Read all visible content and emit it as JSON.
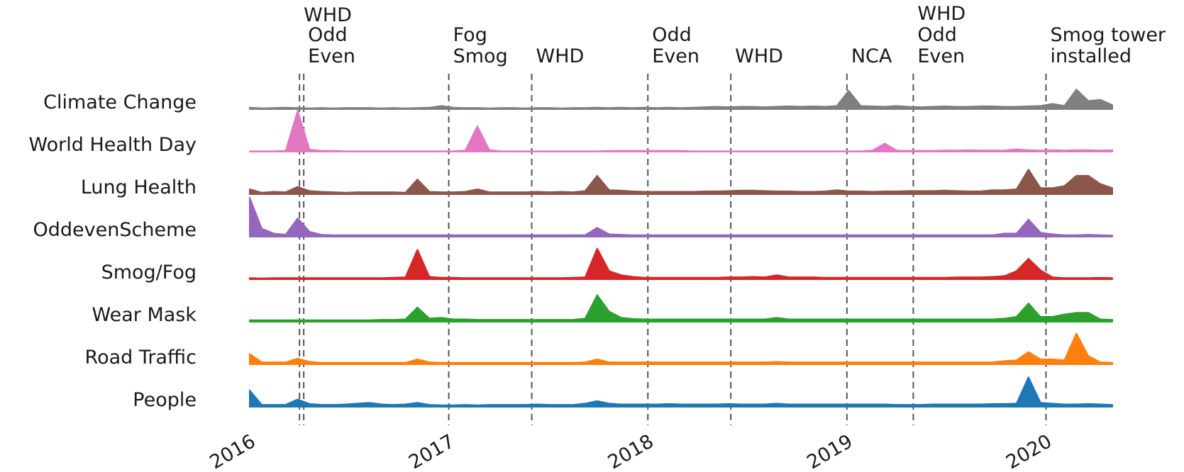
{
  "chart_data": {
    "type": "area",
    "x_start": "2016-01",
    "x_end": "2020-05",
    "x_ticks": [
      "2016",
      "2017",
      "2018",
      "2019",
      "2020"
    ],
    "x_tick_dates": [
      "2016-01",
      "2017-01",
      "2018-01",
      "2019-01",
      "2020-01"
    ],
    "grid": false,
    "legend": "none (rows labeled on the left)",
    "events": [
      {
        "date": "2016-04",
        "lines": [
          "WHD"
        ]
      },
      {
        "date": "2016-04",
        "lines": [
          "Odd",
          "Even"
        ]
      },
      {
        "date": "2017-01",
        "lines": [
          "Fog",
          "Smog"
        ]
      },
      {
        "date": "2017-06",
        "lines": [
          "WHD"
        ]
      },
      {
        "date": "2018-01",
        "lines": [
          "Odd",
          "Even"
        ]
      },
      {
        "date": "2018-06",
        "lines": [
          "WHD"
        ]
      },
      {
        "date": "2019-01",
        "lines": [
          "NCA"
        ]
      },
      {
        "date": "2019-05",
        "lines": [
          "WHD",
          "Odd",
          "Even"
        ]
      },
      {
        "date": "2020-01",
        "lines": [
          "Smog tower",
          "installed"
        ]
      }
    ],
    "series": [
      {
        "name": "Climate Change",
        "color": "#7f7f7f",
        "values": [
          0.04,
          0.02,
          0.03,
          0.04,
          0.03,
          0.02,
          0.03,
          0.02,
          0.03,
          0.03,
          0.03,
          0.02,
          0.03,
          0.02,
          0.03,
          0.04,
          0.08,
          0.04,
          0.03,
          0.03,
          0.02,
          0.03,
          0.03,
          0.02,
          0.03,
          0.03,
          0.02,
          0.03,
          0.03,
          0.04,
          0.03,
          0.04,
          0.03,
          0.04,
          0.03,
          0.04,
          0.03,
          0.04,
          0.05,
          0.06,
          0.05,
          0.06,
          0.06,
          0.05,
          0.06,
          0.07,
          0.06,
          0.07,
          0.06,
          0.08,
          0.45,
          0.08,
          0.07,
          0.06,
          0.08,
          0.06,
          0.05,
          0.06,
          0.07,
          0.06,
          0.06,
          0.07,
          0.07,
          0.06,
          0.06,
          0.07,
          0.08,
          0.13,
          0.08,
          0.48,
          0.2,
          0.23,
          0.1
        ]
      },
      {
        "name": "World Health Day",
        "color": "#e377c2",
        "values": [
          0.01,
          0.01,
          0.01,
          0.02,
          1.0,
          0.05,
          0.02,
          0.02,
          0.01,
          0.01,
          0.01,
          0.01,
          0.01,
          0.01,
          0.01,
          0.01,
          0.01,
          0.01,
          0.03,
          0.62,
          0.04,
          0.01,
          0.01,
          0.01,
          0.01,
          0.01,
          0.01,
          0.01,
          0.01,
          0.01,
          0.02,
          0.02,
          0.02,
          0.02,
          0.02,
          0.02,
          0.02,
          0.01,
          0.01,
          0.01,
          0.01,
          0.01,
          0.01,
          0.01,
          0.01,
          0.01,
          0.01,
          0.01,
          0.01,
          0.01,
          0.01,
          0.01,
          0.03,
          0.2,
          0.03,
          0.02,
          0.02,
          0.02,
          0.03,
          0.03,
          0.04,
          0.03,
          0.03,
          0.03,
          0.06,
          0.04,
          0.03,
          0.04,
          0.03,
          0.04,
          0.04,
          0.03,
          0.04
        ]
      },
      {
        "name": "Lung Health",
        "color": "#8c564b",
        "values": [
          0.12,
          0.04,
          0.06,
          0.05,
          0.18,
          0.08,
          0.06,
          0.05,
          0.04,
          0.05,
          0.05,
          0.05,
          0.05,
          0.04,
          0.36,
          0.06,
          0.05,
          0.05,
          0.06,
          0.12,
          0.05,
          0.05,
          0.05,
          0.05,
          0.06,
          0.05,
          0.06,
          0.05,
          0.08,
          0.45,
          0.1,
          0.09,
          0.07,
          0.06,
          0.06,
          0.06,
          0.06,
          0.06,
          0.07,
          0.07,
          0.08,
          0.09,
          0.09,
          0.08,
          0.07,
          0.07,
          0.06,
          0.06,
          0.07,
          0.1,
          0.07,
          0.07,
          0.06,
          0.07,
          0.07,
          0.08,
          0.08,
          0.08,
          0.09,
          0.08,
          0.07,
          0.07,
          0.1,
          0.1,
          0.12,
          0.6,
          0.15,
          0.15,
          0.2,
          0.45,
          0.45,
          0.25,
          0.15
        ]
      },
      {
        "name": "OddevenScheme",
        "color": "#9467bd",
        "values": [
          0.95,
          0.2,
          0.08,
          0.05,
          0.45,
          0.12,
          0.05,
          0.04,
          0.04,
          0.04,
          0.04,
          0.04,
          0.04,
          0.04,
          0.04,
          0.04,
          0.04,
          0.04,
          0.04,
          0.04,
          0.04,
          0.04,
          0.04,
          0.04,
          0.04,
          0.04,
          0.04,
          0.04,
          0.04,
          0.22,
          0.06,
          0.05,
          0.04,
          0.04,
          0.04,
          0.04,
          0.04,
          0.04,
          0.04,
          0.04,
          0.04,
          0.04,
          0.04,
          0.04,
          0.04,
          0.04,
          0.04,
          0.04,
          0.04,
          0.04,
          0.04,
          0.04,
          0.04,
          0.04,
          0.04,
          0.04,
          0.04,
          0.04,
          0.04,
          0.04,
          0.04,
          0.04,
          0.04,
          0.08,
          0.08,
          0.42,
          0.1,
          0.06,
          0.04,
          0.04,
          0.05,
          0.04,
          0.03
        ]
      },
      {
        "name": "Smog/Fog",
        "color": "#d62728",
        "values": [
          0.03,
          0.02,
          0.03,
          0.03,
          0.03,
          0.03,
          0.03,
          0.03,
          0.03,
          0.03,
          0.03,
          0.03,
          0.04,
          0.05,
          0.72,
          0.06,
          0.04,
          0.04,
          0.03,
          0.03,
          0.03,
          0.03,
          0.03,
          0.03,
          0.03,
          0.03,
          0.03,
          0.04,
          0.05,
          0.75,
          0.2,
          0.1,
          0.06,
          0.04,
          0.04,
          0.04,
          0.04,
          0.04,
          0.04,
          0.04,
          0.05,
          0.05,
          0.06,
          0.05,
          0.1,
          0.05,
          0.05,
          0.05,
          0.04,
          0.04,
          0.04,
          0.04,
          0.04,
          0.04,
          0.04,
          0.04,
          0.04,
          0.04,
          0.04,
          0.05,
          0.05,
          0.05,
          0.06,
          0.08,
          0.2,
          0.5,
          0.22,
          0.05,
          0.03,
          0.03,
          0.03,
          0.04,
          0.03
        ]
      },
      {
        "name": "Wear Mask",
        "color": "#2ca02c",
        "values": [
          0.04,
          0.04,
          0.04,
          0.04,
          0.04,
          0.04,
          0.04,
          0.04,
          0.04,
          0.04,
          0.04,
          0.05,
          0.05,
          0.06,
          0.35,
          0.08,
          0.1,
          0.06,
          0.06,
          0.05,
          0.05,
          0.05,
          0.05,
          0.05,
          0.05,
          0.05,
          0.05,
          0.05,
          0.08,
          0.65,
          0.25,
          0.1,
          0.07,
          0.06,
          0.06,
          0.06,
          0.06,
          0.06,
          0.06,
          0.06,
          0.06,
          0.06,
          0.06,
          0.06,
          0.1,
          0.06,
          0.06,
          0.06,
          0.06,
          0.06,
          0.06,
          0.06,
          0.06,
          0.06,
          0.06,
          0.06,
          0.06,
          0.06,
          0.06,
          0.06,
          0.06,
          0.06,
          0.06,
          0.08,
          0.12,
          0.45,
          0.12,
          0.12,
          0.18,
          0.22,
          0.22,
          0.06,
          0.05
        ]
      },
      {
        "name": "Road Traffic",
        "color": "#ff7f0e",
        "values": [
          0.25,
          0.05,
          0.05,
          0.05,
          0.14,
          0.06,
          0.04,
          0.04,
          0.04,
          0.04,
          0.04,
          0.04,
          0.04,
          0.04,
          0.12,
          0.05,
          0.04,
          0.04,
          0.04,
          0.04,
          0.04,
          0.04,
          0.04,
          0.04,
          0.04,
          0.04,
          0.04,
          0.04,
          0.05,
          0.12,
          0.05,
          0.05,
          0.05,
          0.05,
          0.05,
          0.05,
          0.05,
          0.05,
          0.05,
          0.05,
          0.05,
          0.05,
          0.05,
          0.05,
          0.06,
          0.05,
          0.05,
          0.05,
          0.05,
          0.05,
          0.05,
          0.05,
          0.05,
          0.05,
          0.05,
          0.05,
          0.05,
          0.05,
          0.05,
          0.05,
          0.05,
          0.05,
          0.05,
          0.08,
          0.1,
          0.3,
          0.12,
          0.12,
          0.1,
          0.75,
          0.2,
          0.05,
          0.04
        ]
      },
      {
        "name": "People",
        "color": "#1f77b4",
        "values": [
          0.4,
          0.05,
          0.05,
          0.05,
          0.18,
          0.07,
          0.05,
          0.05,
          0.06,
          0.08,
          0.1,
          0.06,
          0.05,
          0.06,
          0.1,
          0.05,
          0.04,
          0.04,
          0.05,
          0.04,
          0.05,
          0.05,
          0.05,
          0.05,
          0.06,
          0.05,
          0.05,
          0.05,
          0.08,
          0.14,
          0.08,
          0.06,
          0.06,
          0.06,
          0.06,
          0.07,
          0.06,
          0.06,
          0.06,
          0.06,
          0.07,
          0.06,
          0.06,
          0.06,
          0.08,
          0.06,
          0.06,
          0.06,
          0.06,
          0.06,
          0.06,
          0.06,
          0.06,
          0.06,
          0.05,
          0.05,
          0.05,
          0.06,
          0.06,
          0.06,
          0.06,
          0.06,
          0.07,
          0.07,
          0.08,
          0.72,
          0.1,
          0.08,
          0.06,
          0.06,
          0.07,
          0.06,
          0.05
        ]
      }
    ]
  }
}
